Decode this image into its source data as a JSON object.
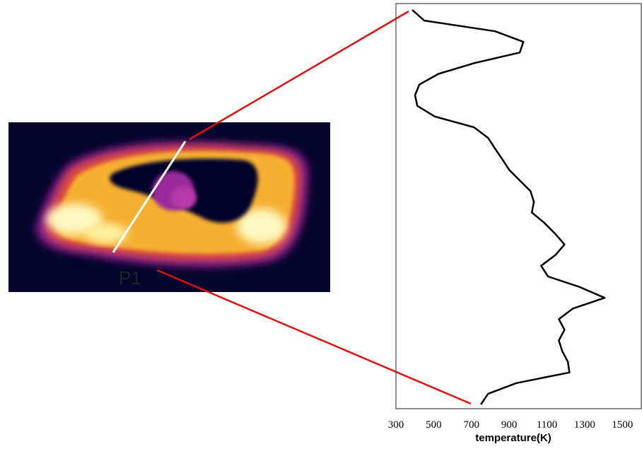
{
  "image": {
    "label": "P1"
  },
  "chart_data": {
    "type": "line",
    "x_label": "temperature(K)",
    "series": [
      {
        "name": "P1",
        "color": "#000000",
        "values": [
          386,
          450,
          825,
          975,
          956,
          713,
          525,
          424,
          401,
          413,
          506,
          713,
          788,
          825,
          863,
          900,
          956,
          1013,
          1031,
          1020,
          1088,
          1144,
          1193,
          1144,
          1069,
          1106,
          1275,
          1406,
          1238,
          1163,
          1193,
          1163,
          1181,
          1211,
          1219,
          938,
          788,
          750
        ]
      }
    ],
    "xlim": [
      300,
      1600
    ],
    "xticks": [
      300,
      500,
      700,
      900,
      1100,
      1300,
      1500
    ]
  }
}
